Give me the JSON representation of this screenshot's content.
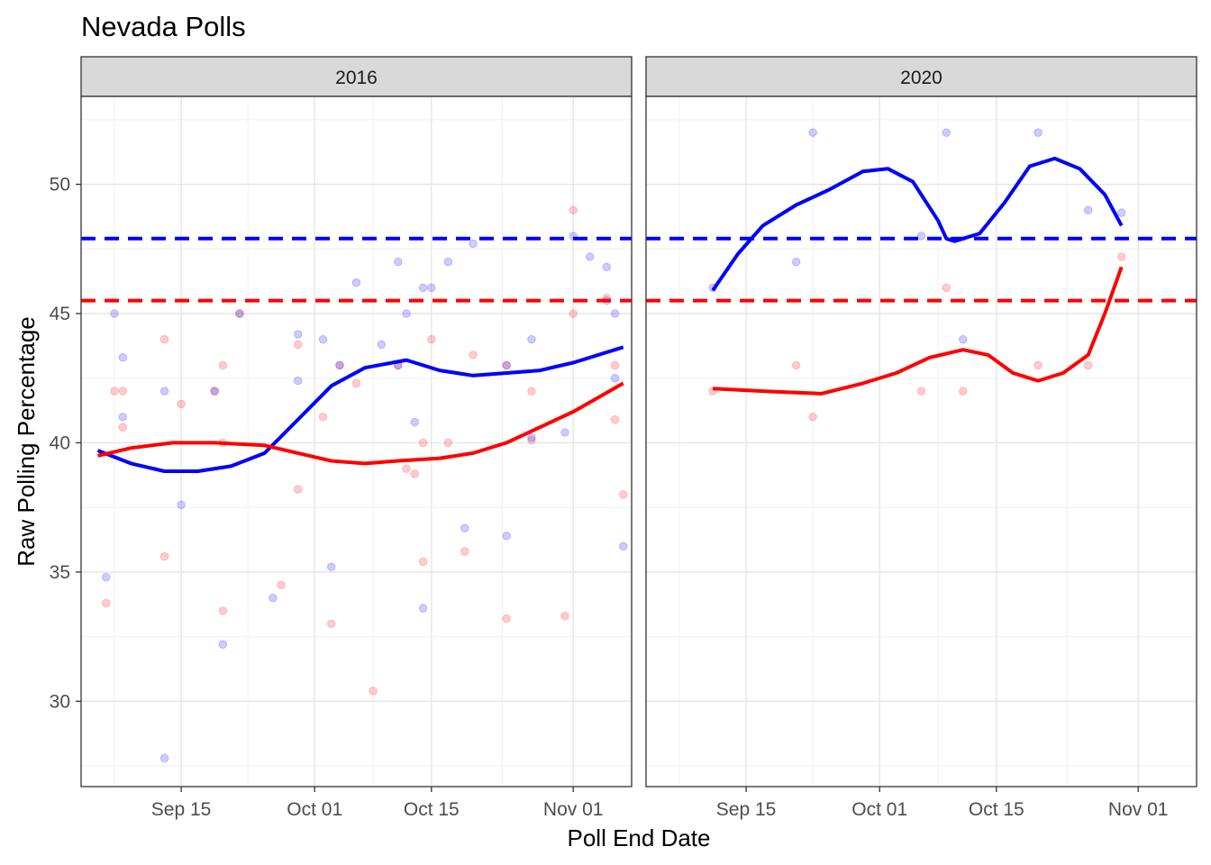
{
  "chart_data": {
    "type": "scatter",
    "title": "Nevada Polls",
    "xlabel": "Poll End Date",
    "ylabel": "Raw Polling Percentage",
    "ylim": [
      26.7,
      53.4
    ],
    "yticks": [
      30,
      35,
      40,
      45,
      50
    ],
    "grid": true,
    "legend": "none",
    "colors": {
      "dem": "#0000ff",
      "rep": "#ff0000"
    },
    "reference_lines": [
      {
        "series": "dem",
        "y": 47.9,
        "style": "dashed"
      },
      {
        "series": "rep",
        "y": 45.5,
        "style": "dashed"
      }
    ],
    "facets": [
      {
        "label": "2016",
        "xlim": [
          "2016-09-03",
          "2016-11-08"
        ],
        "xticks": [
          {
            "date": "2016-09-15",
            "label": "Sep 15"
          },
          {
            "date": "2016-10-01",
            "label": "Oct 01"
          },
          {
            "date": "2016-10-15",
            "label": "Oct 15"
          },
          {
            "date": "2016-11-01",
            "label": "Nov 01"
          }
        ],
        "dem_points": [
          [
            "2016-09-06",
            34.8
          ],
          [
            "2016-09-07",
            45
          ],
          [
            "2016-09-08",
            43.3
          ],
          [
            "2016-09-08",
            41
          ],
          [
            "2016-09-13",
            42
          ],
          [
            "2016-09-13",
            27.8
          ],
          [
            "2016-09-15",
            37.6
          ],
          [
            "2016-09-19",
            42
          ],
          [
            "2016-09-20",
            32.2
          ],
          [
            "2016-09-22",
            45
          ],
          [
            "2016-09-26",
            34
          ],
          [
            "2016-09-29",
            44.2
          ],
          [
            "2016-09-29",
            42.4
          ],
          [
            "2016-10-02",
            44
          ],
          [
            "2016-10-03",
            35.2
          ],
          [
            "2016-10-04",
            43
          ],
          [
            "2016-10-06",
            46.2
          ],
          [
            "2016-10-09",
            43.8
          ],
          [
            "2016-10-11",
            47
          ],
          [
            "2016-10-11",
            43
          ],
          [
            "2016-10-12",
            45
          ],
          [
            "2016-10-13",
            40.8
          ],
          [
            "2016-10-14",
            46
          ],
          [
            "2016-10-14",
            33.6
          ],
          [
            "2016-10-15",
            46
          ],
          [
            "2016-10-17",
            47
          ],
          [
            "2016-10-19",
            36.7
          ],
          [
            "2016-10-20",
            47.7
          ],
          [
            "2016-10-24",
            36.4
          ],
          [
            "2016-10-24",
            43
          ],
          [
            "2016-10-27",
            44
          ],
          [
            "2016-10-27",
            40.2
          ],
          [
            "2016-10-31",
            40.4
          ],
          [
            "2016-11-01",
            48
          ],
          [
            "2016-11-03",
            47.2
          ],
          [
            "2016-11-05",
            46.8
          ],
          [
            "2016-11-05",
            45.5
          ],
          [
            "2016-11-06",
            42.5
          ],
          [
            "2016-11-06",
            45
          ],
          [
            "2016-11-07",
            36
          ]
        ],
        "rep_points": [
          [
            "2016-09-06",
            33.8
          ],
          [
            "2016-09-07",
            42
          ],
          [
            "2016-09-08",
            42
          ],
          [
            "2016-09-08",
            40.6
          ],
          [
            "2016-09-13",
            44
          ],
          [
            "2016-09-13",
            35.6
          ],
          [
            "2016-09-15",
            41.5
          ],
          [
            "2016-09-19",
            42
          ],
          [
            "2016-09-20",
            43
          ],
          [
            "2016-09-20",
            40
          ],
          [
            "2016-09-20",
            33.5
          ],
          [
            "2016-09-22",
            45
          ],
          [
            "2016-09-27",
            34.5
          ],
          [
            "2016-09-29",
            43.8
          ],
          [
            "2016-09-29",
            38.2
          ],
          [
            "2016-10-02",
            41
          ],
          [
            "2016-10-03",
            33
          ],
          [
            "2016-10-04",
            43
          ],
          [
            "2016-10-06",
            42.3
          ],
          [
            "2016-10-08",
            30.4
          ],
          [
            "2016-10-11",
            43
          ],
          [
            "2016-10-12",
            39
          ],
          [
            "2016-10-13",
            38.8
          ],
          [
            "2016-10-14",
            40
          ],
          [
            "2016-10-14",
            35.4
          ],
          [
            "2016-10-15",
            44
          ],
          [
            "2016-10-17",
            40
          ],
          [
            "2016-10-19",
            35.8
          ],
          [
            "2016-10-20",
            43.4
          ],
          [
            "2016-10-24",
            43
          ],
          [
            "2016-10-24",
            33.2
          ],
          [
            "2016-10-27",
            42
          ],
          [
            "2016-10-27",
            40.1
          ],
          [
            "2016-10-31",
            33.3
          ],
          [
            "2016-11-01",
            49
          ],
          [
            "2016-11-01",
            45
          ],
          [
            "2016-11-05",
            45.6
          ],
          [
            "2016-11-06",
            43
          ],
          [
            "2016-11-06",
            40.9
          ],
          [
            "2016-11-07",
            38
          ]
        ],
        "dem_trend": [
          [
            "2016-09-05",
            39.7
          ],
          [
            "2016-09-09",
            39.2
          ],
          [
            "2016-09-13",
            38.9
          ],
          [
            "2016-09-17",
            38.9
          ],
          [
            "2016-09-21",
            39.1
          ],
          [
            "2016-09-25",
            39.6
          ],
          [
            "2016-09-29",
            40.9
          ],
          [
            "2016-10-03",
            42.2
          ],
          [
            "2016-10-07",
            42.9
          ],
          [
            "2016-10-12",
            43.2
          ],
          [
            "2016-10-16",
            42.8
          ],
          [
            "2016-10-20",
            42.6
          ],
          [
            "2016-10-24",
            42.7
          ],
          [
            "2016-10-28",
            42.8
          ],
          [
            "2016-11-01",
            43.1
          ],
          [
            "2016-11-07",
            43.7
          ]
        ],
        "rep_trend": [
          [
            "2016-09-05",
            39.5
          ],
          [
            "2016-09-09",
            39.8
          ],
          [
            "2016-09-14",
            40
          ],
          [
            "2016-09-19",
            40
          ],
          [
            "2016-09-25",
            39.9
          ],
          [
            "2016-09-29",
            39.6
          ],
          [
            "2016-10-03",
            39.3
          ],
          [
            "2016-10-07",
            39.2
          ],
          [
            "2016-10-11",
            39.3
          ],
          [
            "2016-10-16",
            39.4
          ],
          [
            "2016-10-20",
            39.6
          ],
          [
            "2016-10-24",
            40
          ],
          [
            "2016-10-28",
            40.6
          ],
          [
            "2016-11-01",
            41.2
          ],
          [
            "2016-11-07",
            42.3
          ]
        ]
      },
      {
        "label": "2020",
        "xlim": [
          "2020-09-03",
          "2020-11-08"
        ],
        "xticks": [
          {
            "date": "2020-09-15",
            "label": "Sep 15"
          },
          {
            "date": "2020-10-01",
            "label": "Oct 01"
          },
          {
            "date": "2020-10-15",
            "label": "Oct 15"
          },
          {
            "date": "2020-11-01",
            "label": "Nov 01"
          }
        ],
        "dem_points": [
          [
            "2020-09-11",
            46
          ],
          [
            "2020-09-21",
            47
          ],
          [
            "2020-09-23",
            52
          ],
          [
            "2020-10-06",
            48
          ],
          [
            "2020-10-09",
            52
          ],
          [
            "2020-10-11",
            44
          ],
          [
            "2020-10-20",
            52
          ],
          [
            "2020-10-26",
            49
          ],
          [
            "2020-10-30",
            48.9
          ]
        ],
        "rep_points": [
          [
            "2020-09-11",
            42
          ],
          [
            "2020-09-21",
            43
          ],
          [
            "2020-09-23",
            41
          ],
          [
            "2020-10-06",
            42
          ],
          [
            "2020-10-09",
            46
          ],
          [
            "2020-10-11",
            42
          ],
          [
            "2020-10-20",
            43
          ],
          [
            "2020-10-26",
            43
          ],
          [
            "2020-10-30",
            47.2
          ]
        ],
        "dem_trend": [
          [
            "2020-09-11",
            45.9
          ],
          [
            "2020-09-14",
            47.3
          ],
          [
            "2020-09-17",
            48.4
          ],
          [
            "2020-09-21",
            49.2
          ],
          [
            "2020-09-25",
            49.8
          ],
          [
            "2020-09-29",
            50.5
          ],
          [
            "2020-10-02",
            50.6
          ],
          [
            "2020-10-05",
            50.1
          ],
          [
            "2020-10-08",
            48.6
          ],
          [
            "2020-10-09",
            47.9
          ],
          [
            "2020-10-10",
            47.8
          ],
          [
            "2020-10-13",
            48.1
          ],
          [
            "2020-10-16",
            49.3
          ],
          [
            "2020-10-19",
            50.7
          ],
          [
            "2020-10-22",
            51
          ],
          [
            "2020-10-25",
            50.6
          ],
          [
            "2020-10-28",
            49.6
          ],
          [
            "2020-10-30",
            48.4
          ]
        ],
        "rep_trend": [
          [
            "2020-09-11",
            42.1
          ],
          [
            "2020-09-17",
            42
          ],
          [
            "2020-09-24",
            41.9
          ],
          [
            "2020-09-29",
            42.3
          ],
          [
            "2020-10-03",
            42.7
          ],
          [
            "2020-10-07",
            43.3
          ],
          [
            "2020-10-11",
            43.6
          ],
          [
            "2020-10-14",
            43.4
          ],
          [
            "2020-10-17",
            42.7
          ],
          [
            "2020-10-20",
            42.4
          ],
          [
            "2020-10-23",
            42.7
          ],
          [
            "2020-10-26",
            43.4
          ],
          [
            "2020-10-28",
            45
          ],
          [
            "2020-10-30",
            46.8
          ]
        ]
      }
    ]
  }
}
